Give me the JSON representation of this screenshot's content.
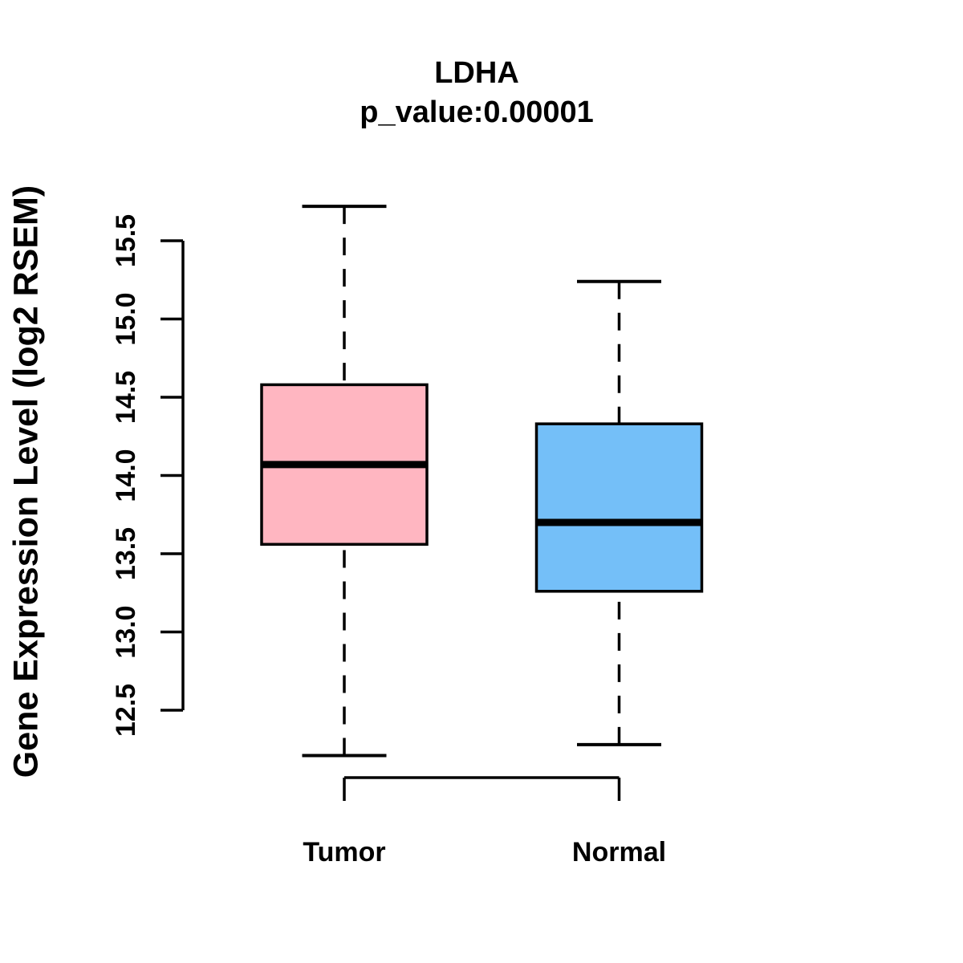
{
  "chart_data": {
    "type": "boxplot",
    "title": "LDHA",
    "subtitle": "p_value:0.00001",
    "ylabel": "Gene Expression Level (log2 RSEM)",
    "xlabel": "",
    "categories": [
      "Tumor",
      "Normal"
    ],
    "series": [
      {
        "name": "Tumor",
        "color": "#FFB6C1",
        "whisker_low": 12.21,
        "q1": 13.56,
        "median": 14.07,
        "q3": 14.58,
        "whisker_high": 15.72
      },
      {
        "name": "Normal",
        "color": "#74BFF8",
        "whisker_low": 12.28,
        "q1": 13.26,
        "median": 13.7,
        "q3": 14.33,
        "whisker_high": 15.24
      }
    ],
    "y_axis": {
      "tick_values": [
        12.5,
        13.0,
        13.5,
        14.0,
        14.5,
        15.0,
        15.5
      ],
      "tick_labels": [
        "12.5",
        "13.0",
        "13.5",
        "14.0",
        "14.5",
        "15.0",
        "15.5"
      ]
    },
    "style": {
      "line_color": "#000000",
      "background": "#FFFFFF",
      "whisker_line_style": "dashed"
    },
    "grid": false,
    "legend": "none"
  }
}
